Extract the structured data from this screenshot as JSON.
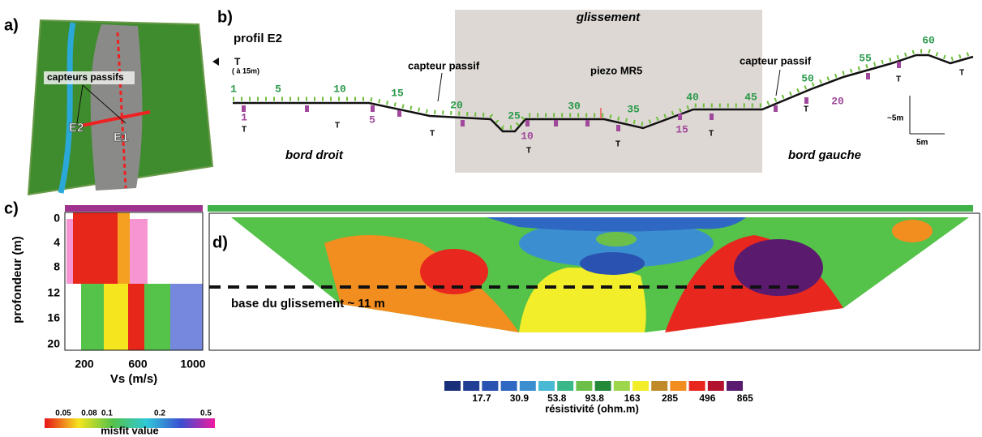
{
  "panel_a": {
    "label": "a)",
    "callout": "capteurs passifs",
    "profiles": [
      "E2",
      "E1"
    ]
  },
  "panel_b": {
    "label": "b)",
    "title": "profil E2",
    "zone": "glissement",
    "direction": {
      "mark": "T",
      "note": "( à 15m)"
    },
    "annotations": [
      "capteur passif",
      "piezo MR5",
      "capteur passif"
    ],
    "electrodes": [
      1,
      5,
      10,
      15,
      20,
      25,
      30,
      35,
      40,
      45,
      50,
      55,
      60
    ],
    "sensors": [
      1,
      5,
      10,
      15,
      20
    ],
    "t_marks": [
      "T",
      "T",
      "T",
      "T",
      "T",
      "T",
      "T",
      "T",
      "T"
    ],
    "sides": [
      "bord droit",
      "bord gauche"
    ],
    "scale": {
      "vertical": "~5m",
      "horizontal": "5m"
    }
  },
  "panel_c": {
    "label": "c)",
    "y_label": "profondeur (m)",
    "y_ticks": [
      0,
      4,
      8,
      12,
      16,
      20
    ],
    "x_label": "Vs (m/s)",
    "x_ticks": [
      200,
      600,
      1000
    ],
    "colorbar": {
      "ticks": [
        0.05,
        0.08,
        0.1,
        0.2,
        0.5
      ],
      "label": "misfit value"
    }
  },
  "panel_d": {
    "label": "d)",
    "annotation": "base du glissement ~ 11 m",
    "colorbar": {
      "ticks": [
        17.7,
        30.9,
        53.8,
        93.8,
        163,
        285,
        496,
        865
      ],
      "label": "résistivité (ohm.m)"
    }
  }
}
